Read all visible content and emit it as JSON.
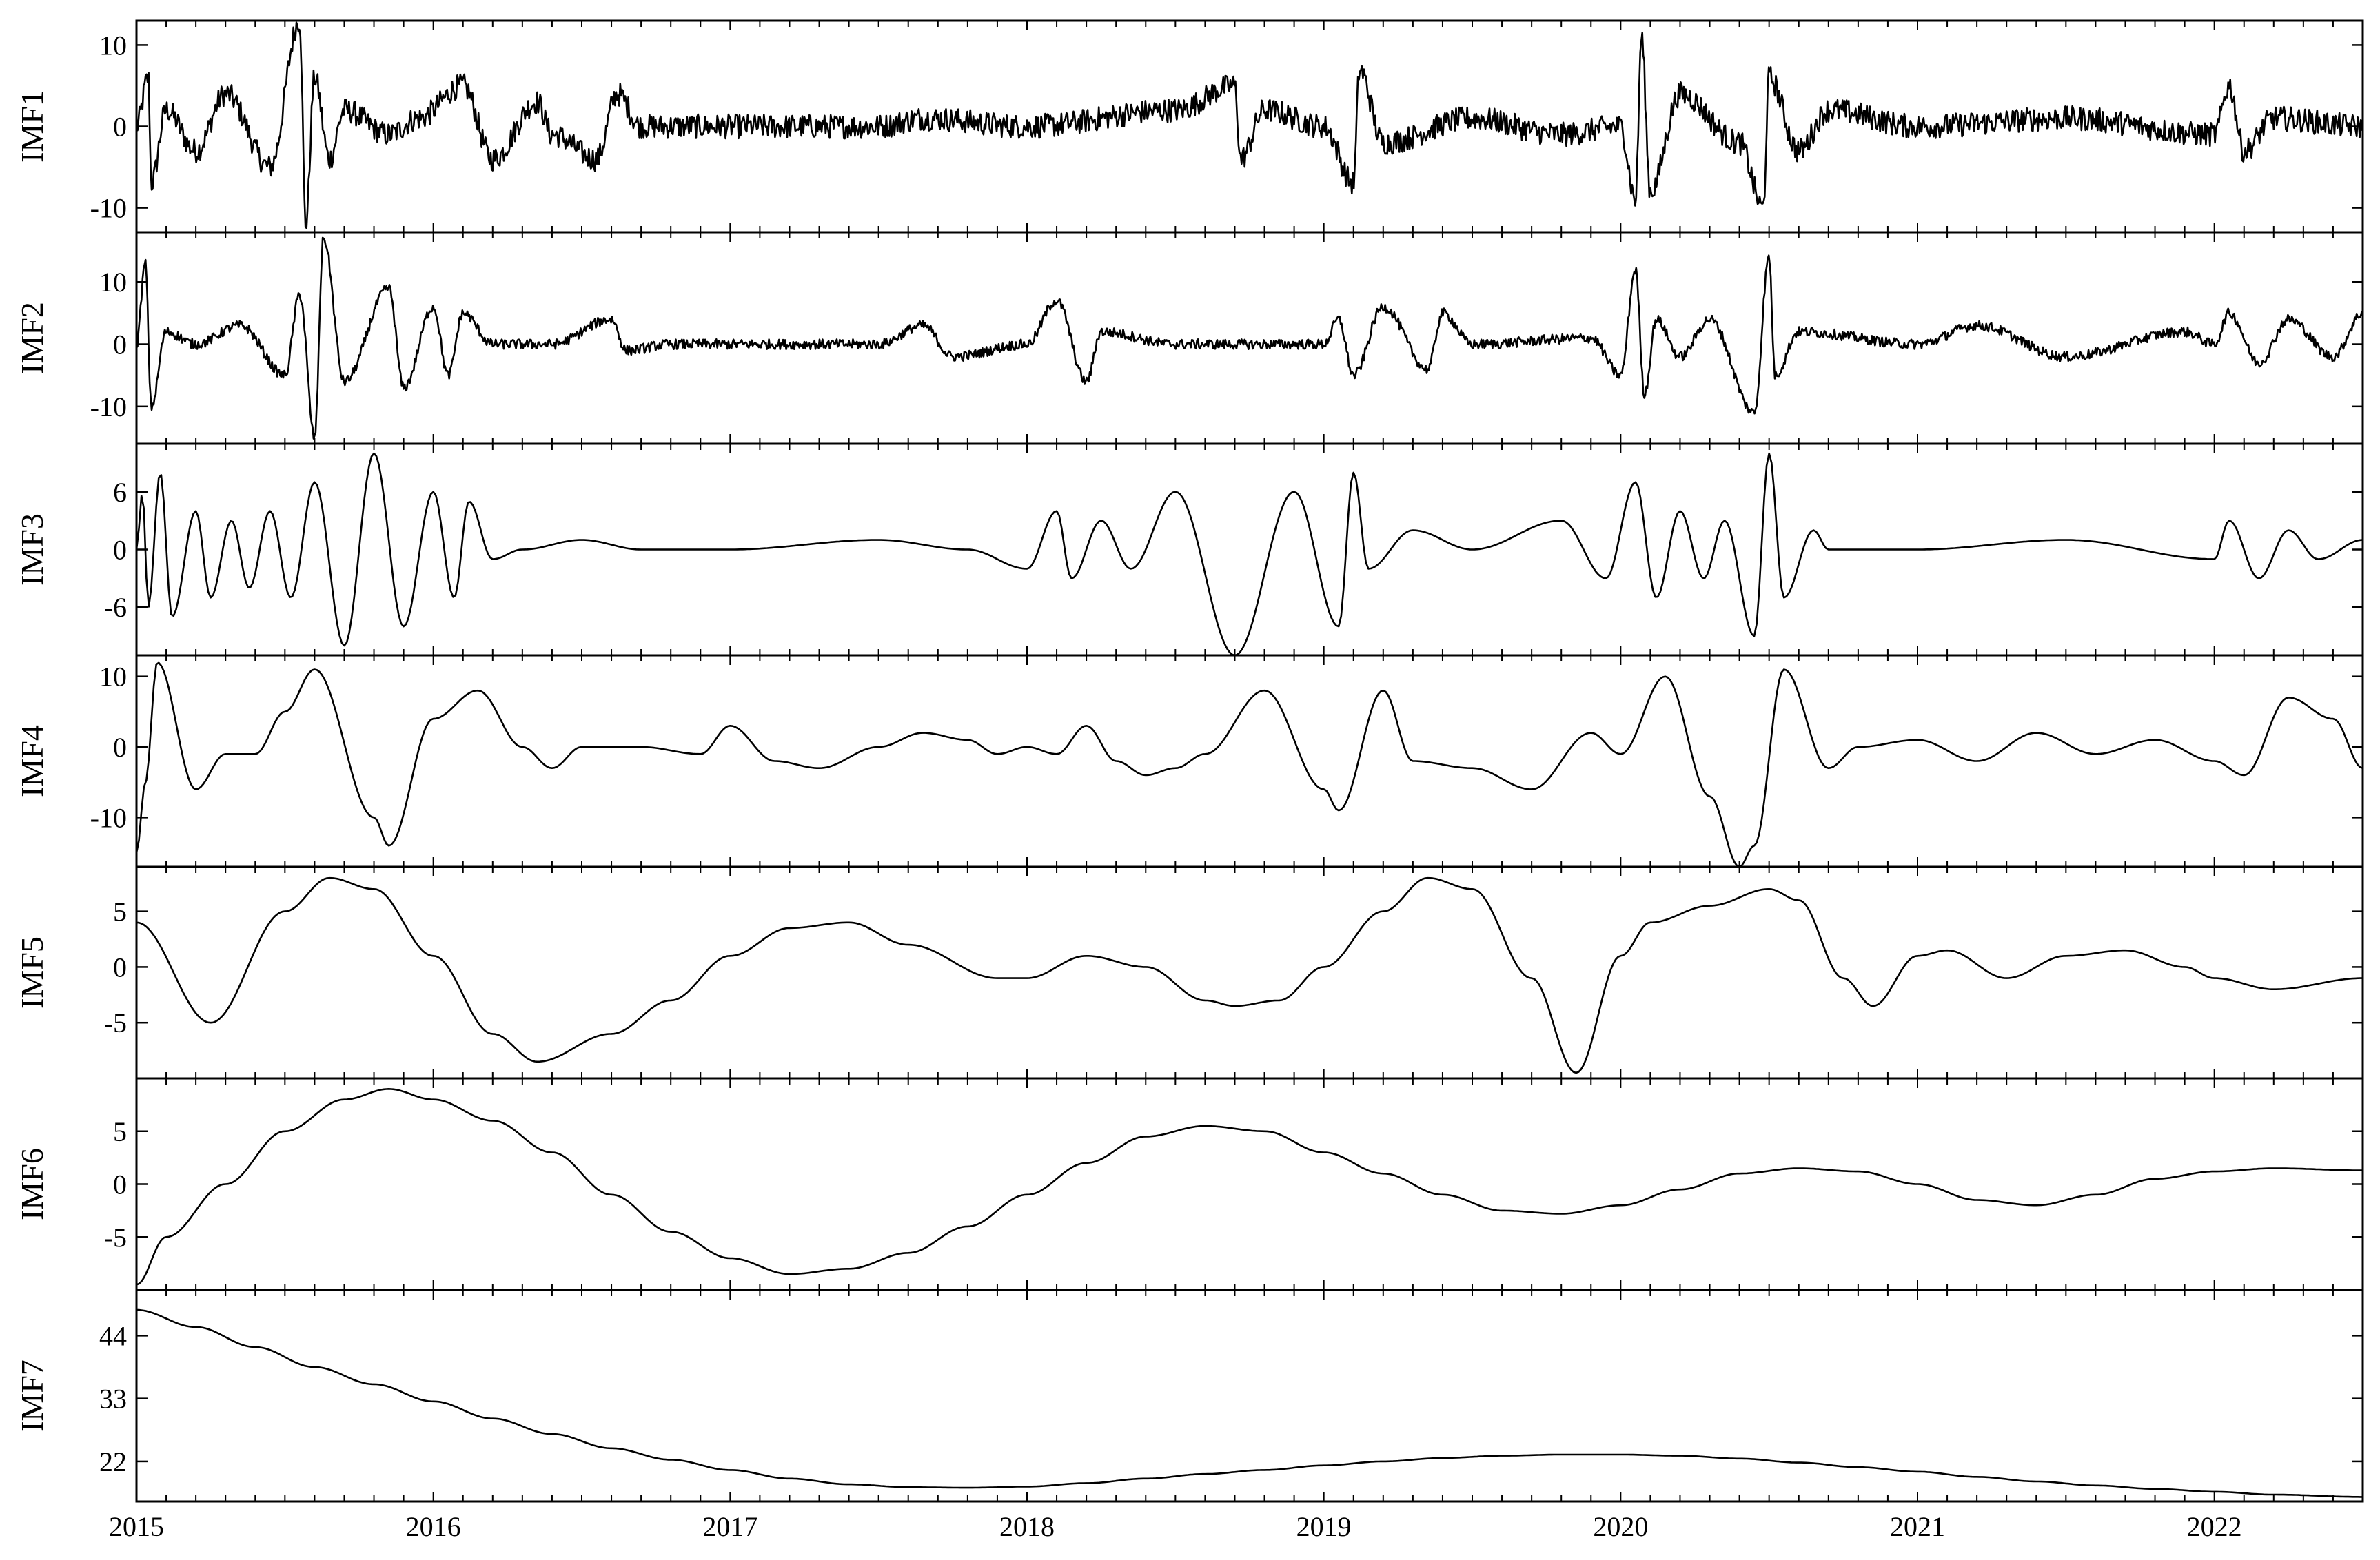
{
  "chart_data": {
    "type": "line",
    "x_ticks": [
      "2015",
      "2016",
      "2017",
      "2018",
      "2019",
      "2020",
      "2021",
      "2022"
    ],
    "xlim": [
      2015.0,
      2022.5
    ],
    "colors": {
      "line": "#000000",
      "background": "#ffffff"
    },
    "panels": [
      {
        "ylabel": "IMF1",
        "ylim": [
          -13,
          13
        ],
        "yticks": [
          "10",
          "0",
          "-10"
        ],
        "ytick_values": [
          10,
          0,
          -10
        ],
        "x": [
          2015.0,
          2015.04,
          2015.05,
          2015.1,
          2015.2,
          2015.3,
          2015.45,
          2015.55,
          2015.57,
          2015.6,
          2015.65,
          2015.7,
          2015.85,
          2015.95,
          2016.1,
          2016.2,
          2016.35,
          2016.4,
          2016.55,
          2016.62,
          2016.7,
          2017.0,
          2017.5,
          2017.65,
          2018.0,
          2018.5,
          2018.7,
          2018.72,
          2018.8,
          2019.0,
          2019.1,
          2019.12,
          2019.2,
          2019.5,
          2019.8,
          2020.0,
          2020.05,
          2020.07,
          2020.1,
          2020.2,
          2020.4,
          2020.48,
          2020.5,
          2020.6,
          2020.7,
          2021.0,
          2021.5,
          2022.0,
          2022.05,
          2022.1,
          2022.2,
          2022.5
        ],
        "values": [
          0,
          6,
          -7,
          2,
          -3,
          4,
          -5,
          13,
          -12,
          6,
          -4,
          2,
          -1,
          1,
          5,
          -4,
          3,
          -1,
          -4,
          4,
          0,
          0,
          0,
          1,
          0,
          2,
          5,
          -4,
          2,
          0,
          -7,
          7,
          -2,
          1,
          -1,
          0,
          -9,
          11,
          -8,
          4,
          -2,
          -10,
          6,
          -3,
          2,
          0,
          1,
          -1,
          5,
          -3,
          1,
          0
        ]
      },
      {
        "ylabel": "IMF2",
        "ylim": [
          -16,
          18
        ],
        "yticks": [
          "10",
          "0",
          "-10"
        ],
        "ytick_values": [
          10,
          0,
          -10
        ],
        "x": [
          2015.0,
          2015.03,
          2015.05,
          2015.1,
          2015.2,
          2015.35,
          2015.5,
          2015.55,
          2015.6,
          2015.63,
          2015.7,
          2015.85,
          2015.9,
          2016.0,
          2016.05,
          2016.1,
          2016.2,
          2016.4,
          2016.6,
          2016.65,
          2016.8,
          2017.0,
          2017.5,
          2017.65,
          2017.75,
          2018.0,
          2018.1,
          2018.2,
          2018.25,
          2018.5,
          2019.0,
          2019.05,
          2019.1,
          2019.2,
          2019.35,
          2019.4,
          2019.5,
          2019.9,
          2020.0,
          2020.05,
          2020.08,
          2020.12,
          2020.2,
          2020.3,
          2020.45,
          2020.5,
          2020.52,
          2020.6,
          2021.0,
          2021.2,
          2021.5,
          2021.9,
          2022.0,
          2022.05,
          2022.15,
          2022.25,
          2022.4,
          2022.5
        ],
        "values": [
          0,
          13,
          -10,
          2,
          0,
          3,
          -5,
          8,
          -15,
          17,
          -6,
          9,
          -7,
          6,
          -5,
          5,
          0,
          0,
          4,
          -1,
          0,
          0,
          0,
          3,
          -2,
          0,
          7,
          -6,
          2,
          0,
          0,
          4,
          -5,
          6,
          -4,
          5,
          0,
          1,
          -5,
          12,
          -8,
          4,
          -2,
          4,
          -11,
          14,
          -5,
          2,
          0,
          3,
          -2,
          2,
          0,
          5,
          -3,
          4,
          -2,
          5
        ]
      },
      {
        "ylabel": "IMF3",
        "ylim": [
          -11,
          11
        ],
        "yticks": [
          "6",
          "0",
          "-6"
        ],
        "ytick_values": [
          6,
          0,
          -6
        ],
        "x": [
          2015.0,
          2015.02,
          2015.04,
          2015.08,
          2015.12,
          2015.2,
          2015.25,
          2015.32,
          2015.38,
          2015.45,
          2015.52,
          2015.6,
          2015.7,
          2015.8,
          2015.9,
          2016.0,
          2016.07,
          2016.12,
          2016.2,
          2016.3,
          2016.5,
          2016.7,
          2017.0,
          2017.5,
          2017.8,
          2018.0,
          2018.1,
          2018.15,
          2018.25,
          2018.35,
          2018.5,
          2018.7,
          2018.9,
          2019.05,
          2019.1,
          2019.15,
          2019.3,
          2019.5,
          2019.8,
          2019.95,
          2020.05,
          2020.12,
          2020.2,
          2020.28,
          2020.35,
          2020.45,
          2020.5,
          2020.55,
          2020.65,
          2020.7,
          2021.0,
          2021.5,
          2022.0,
          2022.05,
          2022.15,
          2022.25,
          2022.35,
          2022.5
        ],
        "values": [
          0,
          6,
          -6,
          8,
          -7,
          4,
          -5,
          3,
          -4,
          4,
          -5,
          7,
          -10,
          10,
          -8,
          6,
          -5,
          5,
          -1,
          0,
          1,
          0,
          0,
          1,
          0,
          -2,
          4,
          -3,
          3,
          -2,
          6,
          -11,
          6,
          -8,
          8,
          -2,
          2,
          0,
          3,
          -3,
          7,
          -5,
          4,
          -3,
          3,
          -9,
          10,
          -5,
          2,
          0,
          0,
          1,
          -1,
          3,
          -3,
          2,
          -1,
          1
        ]
      },
      {
        "ylabel": "IMF4",
        "ylim": [
          -17,
          13
        ],
        "yticks": [
          "10",
          "0",
          "-10"
        ],
        "ytick_values": [
          10,
          0,
          -10
        ],
        "x": [
          2015.0,
          2015.03,
          2015.07,
          2015.2,
          2015.3,
          2015.4,
          2015.5,
          2015.6,
          2015.8,
          2015.85,
          2016.0,
          2016.15,
          2016.3,
          2016.4,
          2016.5,
          2016.7,
          2016.9,
          2017.0,
          2017.15,
          2017.3,
          2017.5,
          2017.65,
          2017.8,
          2017.9,
          2018.0,
          2018.1,
          2018.2,
          2018.3,
          2018.4,
          2018.5,
          2018.6,
          2018.8,
          2019.0,
          2019.05,
          2019.2,
          2019.3,
          2019.5,
          2019.7,
          2019.9,
          2020.0,
          2020.15,
          2020.3,
          2020.4,
          2020.45,
          2020.55,
          2020.7,
          2020.8,
          2021.0,
          2021.2,
          2021.4,
          2021.6,
          2021.8,
          2022.0,
          2022.1,
          2022.25,
          2022.4,
          2022.5
        ],
        "values": [
          -15,
          -5,
          12,
          -6,
          -1,
          -1,
          5,
          11,
          -10,
          -14,
          4,
          8,
          0,
          -3,
          0,
          0,
          -1,
          3,
          -2,
          -3,
          0,
          2,
          1,
          -1,
          0,
          -1,
          3,
          -2,
          -4,
          -3,
          -1,
          8,
          -6,
          -9,
          8,
          -2,
          -3,
          -6,
          2,
          -1,
          10,
          -7,
          -17,
          -14,
          11,
          -3,
          0,
          1,
          -2,
          2,
          -1,
          1,
          -2,
          -4,
          7,
          4,
          -3
        ]
      },
      {
        "ylabel": "IMF5",
        "ylim": [
          -10,
          9
        ],
        "yticks": [
          "5",
          "0",
          "-5"
        ],
        "ytick_values": [
          5,
          0,
          -5
        ],
        "x": [
          2015.0,
          2015.25,
          2015.5,
          2015.65,
          2015.8,
          2016.0,
          2016.2,
          2016.35,
          2016.6,
          2016.8,
          2017.0,
          2017.2,
          2017.4,
          2017.6,
          2017.9,
          2018.0,
          2018.2,
          2018.4,
          2018.6,
          2018.7,
          2018.85,
          2019.0,
          2019.2,
          2019.35,
          2019.5,
          2019.7,
          2019.85,
          2020.0,
          2020.1,
          2020.3,
          2020.5,
          2020.6,
          2020.75,
          2020.85,
          2021.0,
          2021.1,
          2021.3,
          2021.5,
          2021.7,
          2021.9,
          2022.0,
          2022.2,
          2022.5
        ],
        "values": [
          4,
          -5,
          5,
          8,
          7,
          1,
          -6,
          -8.5,
          -6,
          -3,
          1,
          3.5,
          4,
          2,
          -1,
          -1,
          1,
          0,
          -3,
          -3.5,
          -3,
          0,
          5,
          8,
          7,
          -1,
          -9.5,
          1,
          4,
          5.5,
          7,
          6,
          -1,
          -3.5,
          1,
          1.5,
          -1,
          1,
          1.5,
          0,
          -1,
          -2,
          -1
        ]
      },
      {
        "ylabel": "IMF6",
        "ylim": [
          -10,
          10
        ],
        "yticks": [
          "5",
          "0",
          "-5"
        ],
        "ytick_values": [
          5,
          0,
          -5
        ],
        "x": [
          2015.0,
          2015.1,
          2015.3,
          2015.5,
          2015.7,
          2015.85,
          2016.0,
          2016.2,
          2016.4,
          2016.6,
          2016.8,
          2017.0,
          2017.2,
          2017.4,
          2017.6,
          2017.8,
          2018.0,
          2018.2,
          2018.4,
          2018.6,
          2018.8,
          2019.0,
          2019.2,
          2019.4,
          2019.6,
          2019.8,
          2020.0,
          2020.2,
          2020.4,
          2020.6,
          2020.8,
          2021.0,
          2021.2,
          2021.4,
          2021.6,
          2021.8,
          2022.0,
          2022.2,
          2022.5
        ],
        "values": [
          -9.5,
          -5,
          0,
          5,
          8,
          9,
          8,
          6,
          3,
          -1,
          -4.5,
          -7,
          -8.5,
          -8,
          -6.5,
          -4,
          -1,
          2,
          4.5,
          5.5,
          5,
          3,
          1,
          -1,
          -2.5,
          -2.8,
          -2,
          -0.5,
          1,
          1.5,
          1.2,
          0,
          -1.5,
          -2,
          -1,
          0.5,
          1.2,
          1.5,
          1.3
        ]
      },
      {
        "ylabel": "IMF7",
        "ylim": [
          15,
          52
        ],
        "yticks": [
          "44",
          "33",
          "22"
        ],
        "ytick_values": [
          44,
          33,
          22
        ],
        "x": [
          2015.0,
          2015.2,
          2015.4,
          2015.6,
          2015.8,
          2016.0,
          2016.2,
          2016.4,
          2016.6,
          2016.8,
          2017.0,
          2017.2,
          2017.4,
          2017.6,
          2017.8,
          2018.0,
          2018.2,
          2018.4,
          2018.6,
          2018.8,
          2019.0,
          2019.2,
          2019.4,
          2019.6,
          2019.8,
          2020.0,
          2020.2,
          2020.4,
          2020.6,
          2020.8,
          2021.0,
          2021.2,
          2021.4,
          2021.6,
          2021.8,
          2022.0,
          2022.2,
          2022.5
        ],
        "values": [
          48.5,
          45.5,
          42,
          38.5,
          35.5,
          32.5,
          29.5,
          26.8,
          24.3,
          22.3,
          20.5,
          19,
          18,
          17.5,
          17.4,
          17.6,
          18.2,
          19,
          19.8,
          20.5,
          21.3,
          22,
          22.6,
          23,
          23.2,
          23.2,
          23,
          22.5,
          21.8,
          21,
          20.2,
          19.3,
          18.5,
          17.8,
          17.2,
          16.7,
          16.2,
          15.8
        ]
      }
    ]
  }
}
